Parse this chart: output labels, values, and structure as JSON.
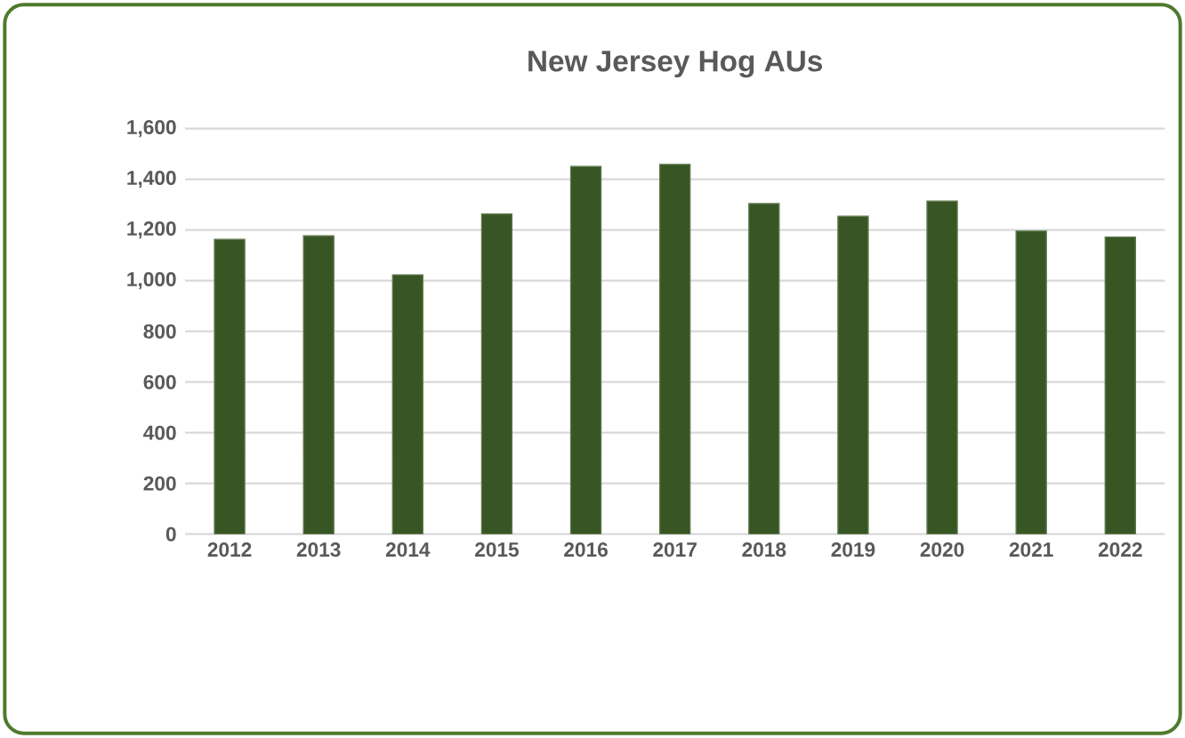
{
  "chart_data": {
    "type": "bar",
    "title": "New Jersey Hog AUs",
    "categories": [
      "2012",
      "2013",
      "2014",
      "2015",
      "2016",
      "2017",
      "2018",
      "2019",
      "2020",
      "2021",
      "2022"
    ],
    "values": [
      1163,
      1177,
      1023,
      1263,
      1451,
      1459,
      1304,
      1254,
      1314,
      1196,
      1172
    ],
    "color": "#375623",
    "ylim": [
      0,
      1600
    ],
    "yticks": [
      0,
      200,
      400,
      600,
      800,
      {
        "value": 1000,
        "label": "1,000"
      },
      {
        "value": 1200,
        "label": "1,200"
      },
      {
        "value": 1400,
        "label": "1,400"
      },
      {
        "value": 1600,
        "label": "1,600"
      }
    ],
    "grid": "y"
  }
}
